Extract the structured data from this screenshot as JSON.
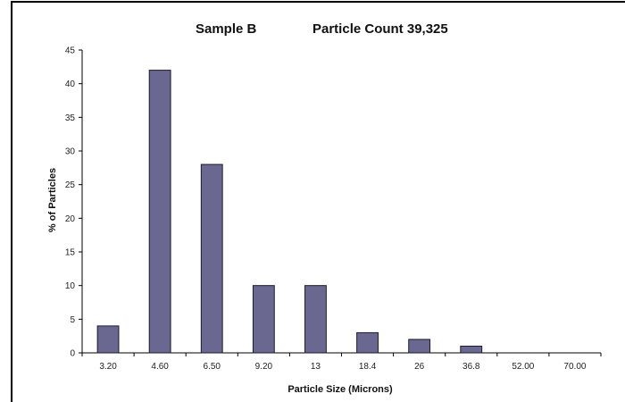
{
  "chart_data": {
    "type": "bar",
    "title": "Sample B",
    "subtitle": "Particle Count  39,325",
    "xlabel": "Particle Size (Microns)",
    "ylabel": "% of Particles",
    "categories": [
      "3.20",
      "4.60",
      "6.50",
      "9.20",
      "13",
      "18.4",
      "26",
      "36.8",
      "52.00",
      "70.00"
    ],
    "values": [
      4,
      42,
      28,
      10,
      10,
      3,
      2,
      1,
      0,
      0
    ],
    "ylim": [
      0,
      45
    ],
    "yticks": [
      "0",
      "5",
      "10",
      "15",
      "20",
      "25",
      "30",
      "35",
      "40",
      "45"
    ],
    "grid": false,
    "legend": "none",
    "bar_color": "#6a6890",
    "bar_edge_color": "#1a1a2e"
  }
}
